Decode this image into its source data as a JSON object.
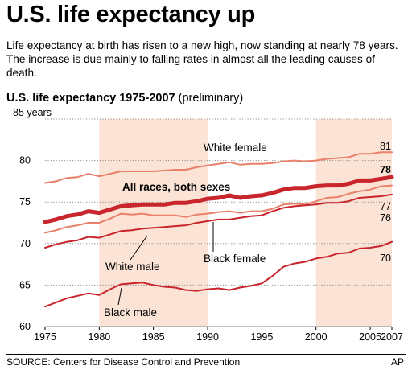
{
  "headline": "U.S. life expectancy up",
  "summary": "Life expectancy at birth has risen to a new high, now standing at nearly 78 years. The increase is due mainly to falling rates in almost all the leading causes of death.",
  "chart_title": "U.S. life expectancy 1975-2007",
  "chart_subtitle": "(preliminary)",
  "source": "SOURCE: Centers for Disease Control and Prevention",
  "credit": "AP",
  "colors": {
    "shade": "#fbe3d6",
    "dark_red": "#c8252c",
    "mid_red": "#d8473f",
    "light_red": "#e9806a"
  },
  "chart_data": {
    "type": "line",
    "title": "U.S. life expectancy 1975-2007",
    "subtitle": "(preliminary)",
    "xlim": [
      1975,
      2007
    ],
    "ylim": [
      60,
      85
    ],
    "x_ticks": [
      1975,
      1980,
      1985,
      1990,
      1995,
      2000,
      2005,
      2007
    ],
    "y_ticks": [
      {
        "value": 60,
        "label": "60"
      },
      {
        "value": 65,
        "label": "65"
      },
      {
        "value": 70,
        "label": "70"
      },
      {
        "value": 75,
        "label": "75"
      },
      {
        "value": 80,
        "label": "80"
      },
      {
        "value": 85,
        "label": "85 years"
      }
    ],
    "grid": true,
    "shaded_periods": [
      [
        1980,
        1990
      ],
      [
        2000,
        2007
      ]
    ],
    "x": [
      1975,
      1976,
      1977,
      1978,
      1979,
      1980,
      1981,
      1982,
      1983,
      1984,
      1985,
      1986,
      1987,
      1988,
      1989,
      1990,
      1991,
      1992,
      1993,
      1994,
      1995,
      1996,
      1997,
      1998,
      1999,
      2000,
      2001,
      2002,
      2003,
      2004,
      2005,
      2006,
      2007
    ],
    "series": [
      {
        "name": "White female",
        "end_label": "81",
        "color": "#e9806a",
        "width": 2,
        "values": [
          77.3,
          77.5,
          77.9,
          78.0,
          78.4,
          78.1,
          78.4,
          78.7,
          78.7,
          78.7,
          78.7,
          78.8,
          78.9,
          78.9,
          79.2,
          79.4,
          79.6,
          79.8,
          79.5,
          79.6,
          79.6,
          79.7,
          79.9,
          80.0,
          79.9,
          80.0,
          80.2,
          80.3,
          80.4,
          80.8,
          80.8,
          81.0,
          81.0
        ]
      },
      {
        "name": "All races, both sexes",
        "end_label": "78",
        "color": "#c8252c",
        "width": 5,
        "values": [
          72.6,
          72.9,
          73.3,
          73.5,
          73.9,
          73.7,
          74.1,
          74.5,
          74.6,
          74.7,
          74.7,
          74.7,
          74.9,
          74.9,
          75.1,
          75.4,
          75.5,
          75.8,
          75.5,
          75.7,
          75.8,
          76.1,
          76.5,
          76.7,
          76.7,
          76.9,
          77.0,
          77.0,
          77.2,
          77.6,
          77.6,
          77.8,
          78.0
        ]
      },
      {
        "name": "Black female",
        "end_label": "77",
        "color": "#e9806a",
        "width": 2,
        "values": [
          71.3,
          71.6,
          72.0,
          72.2,
          72.5,
          72.5,
          73.0,
          73.6,
          73.5,
          73.6,
          73.4,
          73.4,
          73.4,
          73.2,
          73.5,
          73.6,
          73.8,
          73.9,
          73.7,
          73.9,
          73.9,
          74.2,
          74.7,
          74.8,
          74.7,
          75.1,
          75.5,
          75.6,
          76.0,
          76.3,
          76.5,
          76.9,
          77.0
        ]
      },
      {
        "name": "White male",
        "end_label": "76",
        "color": "#c8252c",
        "width": 2,
        "values": [
          69.5,
          69.9,
          70.2,
          70.4,
          70.8,
          70.7,
          71.1,
          71.5,
          71.6,
          71.8,
          71.9,
          72.0,
          72.1,
          72.2,
          72.5,
          72.7,
          72.9,
          72.9,
          73.1,
          73.3,
          73.4,
          73.9,
          74.3,
          74.5,
          74.6,
          74.7,
          74.9,
          74.9,
          75.1,
          75.5,
          75.6,
          75.7,
          75.9
        ]
      },
      {
        "name": "Black male",
        "end_label": "70",
        "color": "#c8252c",
        "width": 2,
        "values": [
          62.4,
          62.9,
          63.4,
          63.7,
          64.0,
          63.8,
          64.5,
          65.1,
          65.2,
          65.3,
          65.0,
          64.8,
          64.7,
          64.4,
          64.3,
          64.5,
          64.6,
          64.4,
          64.7,
          64.9,
          65.2,
          66.1,
          67.2,
          67.6,
          67.8,
          68.2,
          68.4,
          68.8,
          68.9,
          69.4,
          69.5,
          69.7,
          70.2
        ]
      }
    ]
  }
}
